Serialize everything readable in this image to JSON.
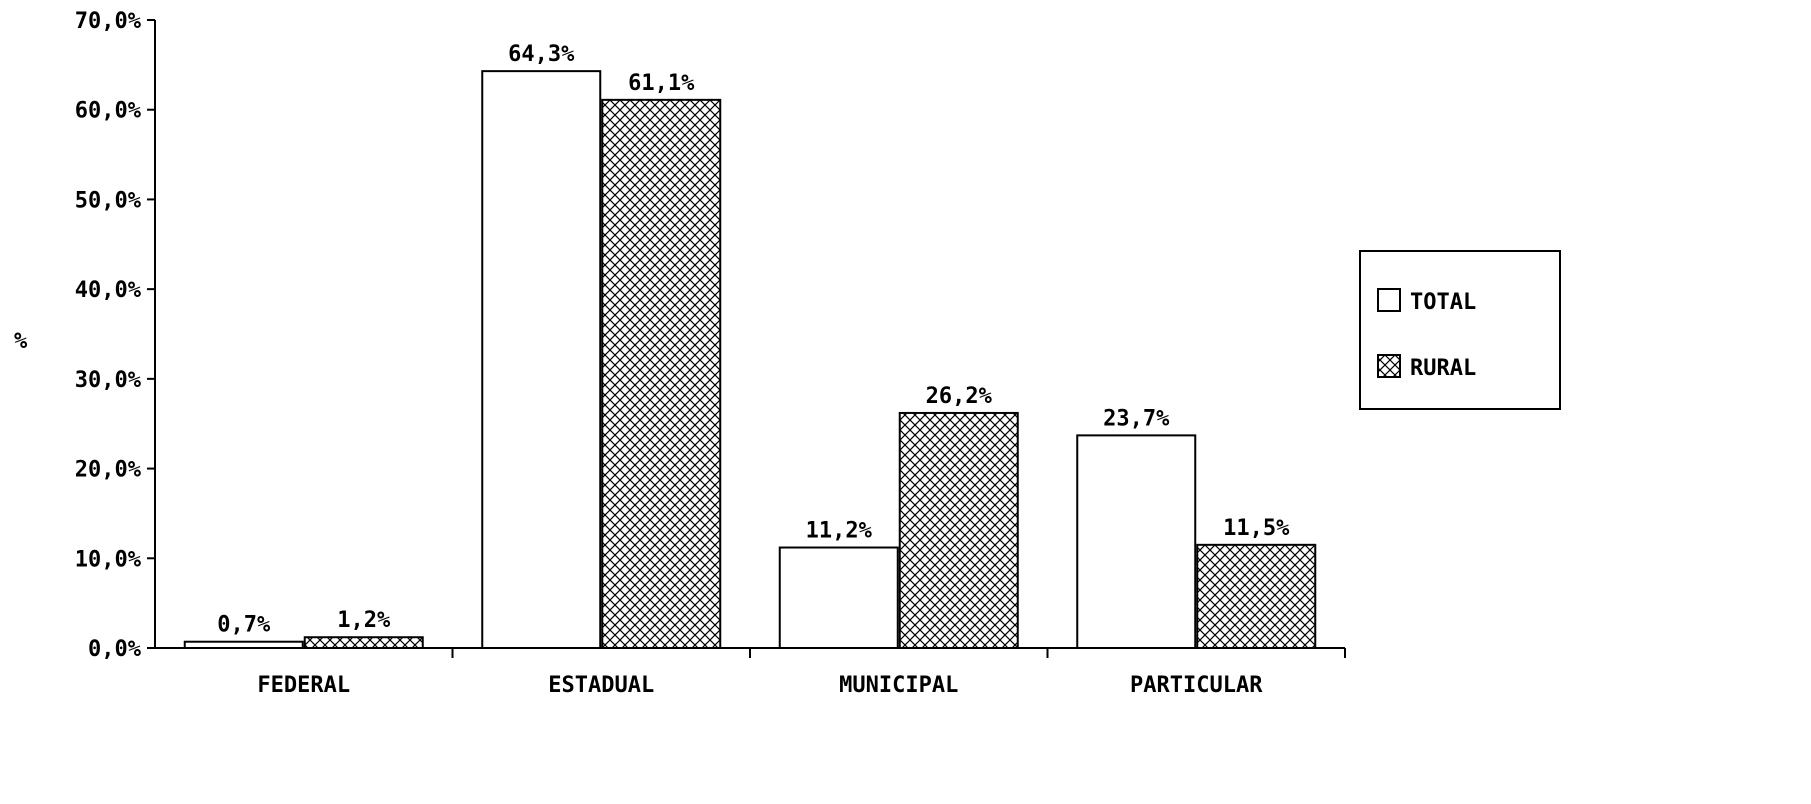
{
  "chart_data": {
    "type": "bar",
    "title": "",
    "ylabel": "%",
    "xlabel": "",
    "ylim": [
      0,
      70
    ],
    "yticks": [
      "0,0%",
      "10,0%",
      "20,0%",
      "30,0%",
      "40,0%",
      "50,0%",
      "60,0%",
      "70,0%"
    ],
    "categories": [
      "FEDERAL",
      "ESTADUAL",
      "MUNICIPAL",
      "PARTICULAR"
    ],
    "series": [
      {
        "name": "TOTAL",
        "pattern": "none",
        "values": [
          0.7,
          64.3,
          11.2,
          23.7
        ],
        "labels": [
          "0,7%",
          "64,3%",
          "11,2%",
          "23,7%"
        ]
      },
      {
        "name": "RURAL",
        "pattern": "crosshatch",
        "values": [
          1.2,
          61.1,
          26.2,
          11.5
        ],
        "labels": [
          "1,2%",
          "61,1%",
          "26,2%",
          "11,5%"
        ]
      }
    ],
    "legend_position": "right",
    "grid": false,
    "colors": {
      "bar_fill": "#ffffff",
      "stroke": "#000000",
      "hatch": "#000000"
    }
  }
}
